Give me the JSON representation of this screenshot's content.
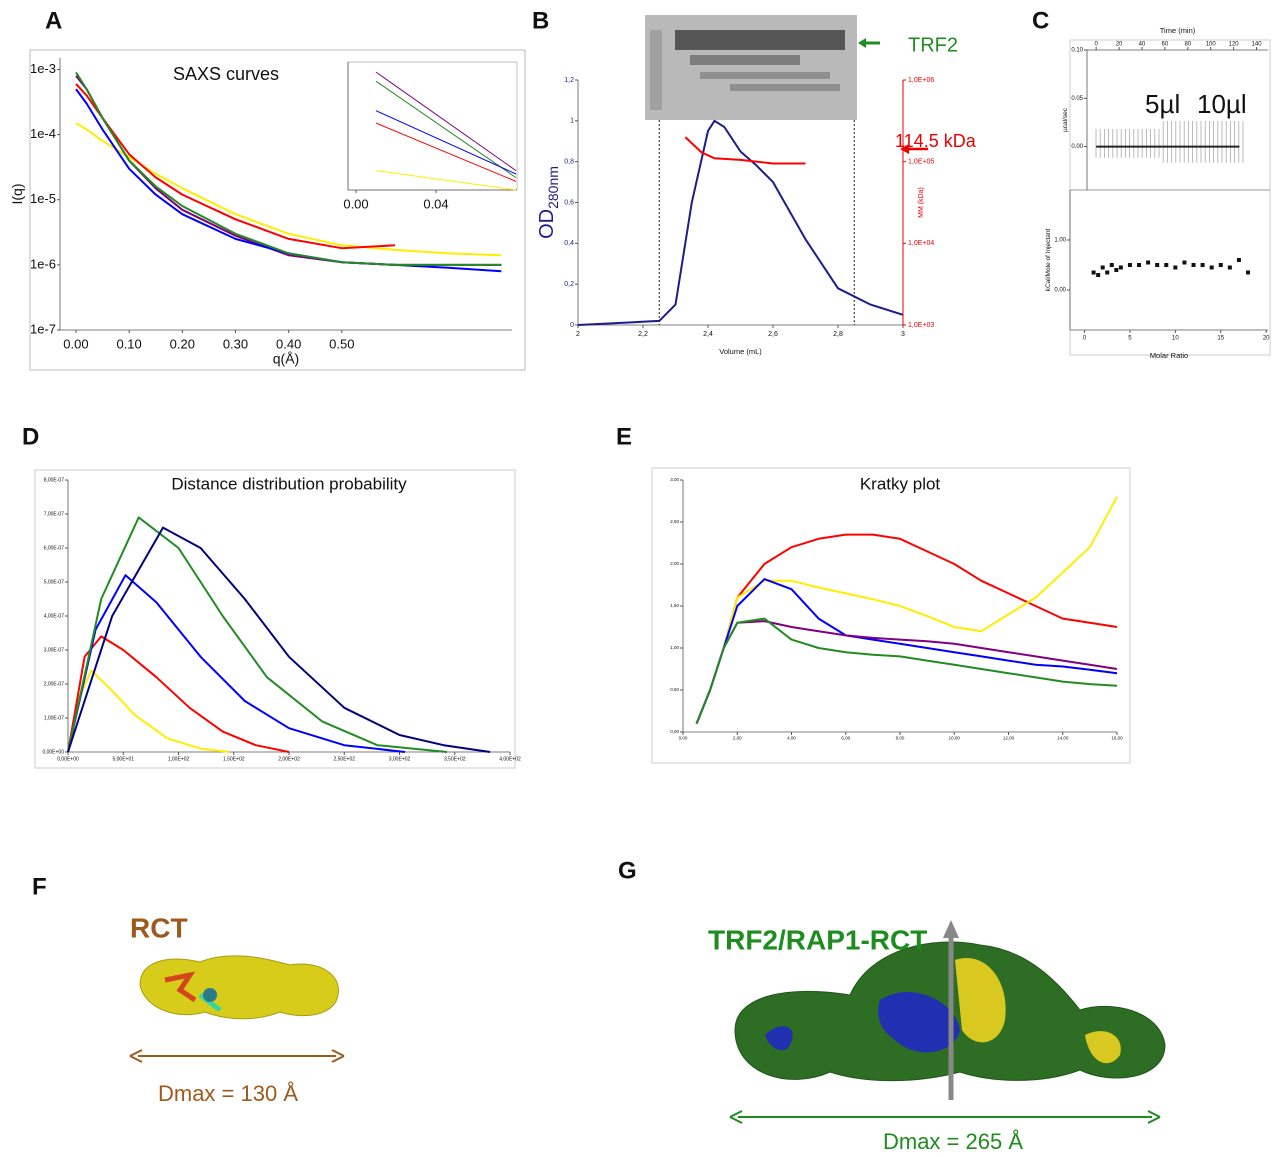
{
  "panel_labels": [
    "A",
    "B",
    "C",
    "D",
    "E",
    "F",
    "G"
  ],
  "chart_data": [
    {
      "type": "line",
      "title": "SAXS curves",
      "xlabel": "q(Å)",
      "ylabel": "I(q)",
      "ylog": true,
      "xlim": [
        -0.03,
        0.82
      ],
      "ylim": [
        1e-07,
        0.0015
      ],
      "xticks": [
        {
          "value": 0,
          "label": "0.00"
        },
        {
          "value": 0.1,
          "label": "0.10"
        },
        {
          "value": 0.2,
          "label": "0.20"
        },
        {
          "value": 0.3,
          "label": "0.30"
        },
        {
          "value": 0.4,
          "label": "0.40"
        },
        {
          "value": 0.5,
          "label": "0.50"
        }
      ],
      "yticks": [
        {
          "value": 0.001,
          "label": "1e-3"
        },
        {
          "value": 0.0001,
          "label": "1e-4"
        },
        {
          "value": 1e-05,
          "label": "1e-5"
        },
        {
          "value": 1e-06,
          "label": "1e-6"
        },
        {
          "value": 1e-07,
          "label": "1e-7"
        }
      ],
      "x": [
        0,
        0.02,
        0.05,
        0.1,
        0.15,
        0.2,
        0.3,
        0.4,
        0.5,
        0.6,
        0.7,
        0.8
      ],
      "series": [
        {
          "color": "#ffee00",
          "values": [
            0.00015,
            0.00012,
            8e-05,
            4.5e-05,
            2.5e-05,
            1.5e-05,
            6e-06,
            3e-06,
            2e-06,
            1.7e-06,
            1.5e-06,
            1.4e-06
          ]
        },
        {
          "color": "#ff0000",
          "values": [
            0.0006,
            0.0004,
            0.00018,
            5e-05,
            2.2e-05,
            1.2e-05,
            5e-06,
            2.5e-06,
            1.8e-06,
            2e-06,
            null,
            null
          ]
        },
        {
          "color": "#800080",
          "values": [
            0.0008,
            0.0005,
            0.00018,
            4e-05,
            1.5e-05,
            7e-06,
            2.8e-06,
            1.4e-06,
            1.1e-06,
            1e-06,
            1e-06,
            1e-06
          ]
        },
        {
          "color": "#0000ff",
          "values": [
            0.0005,
            0.0003,
            0.00012,
            3e-05,
            1.2e-05,
            6e-06,
            2.5e-06,
            1.5e-06,
            1.1e-06,
            1e-06,
            9e-07,
            8e-07
          ]
        },
        {
          "color": "#228b22",
          "values": [
            0.0009,
            0.0005,
            0.00018,
            4e-05,
            1.6e-05,
            8e-06,
            3e-06,
            1.5e-06,
            1.1e-06,
            1e-06,
            1e-06,
            1e-06
          ]
        }
      ]
    },
    {
      "type": "line",
      "ylog": true,
      "xlim": [
        -0.004,
        0.0805
      ],
      "ylim": [
        0.00012,
        0.0012
      ],
      "xticks": [
        {
          "value": 0,
          "label": "0.00"
        },
        0.04
      ],
      "x": [
        0.01,
        0.08
      ],
      "series": [
        {
          "color": "#800080",
          "values": [
            0.001,
            0.00017
          ]
        },
        {
          "color": "#228b22",
          "values": [
            0.00085,
            0.00015
          ]
        },
        {
          "color": "#0000ff",
          "values": [
            0.0005,
            0.00016
          ]
        },
        {
          "color": "#ff0000",
          "values": [
            0.0004,
            0.00014
          ]
        },
        {
          "color": "#ffee00",
          "values": [
            0.00017,
            0.00012
          ]
        }
      ]
    },
    {
      "type": "line",
      "xlabel": "Volume (mL)",
      "ylabel": "OD",
      "ylabel_subscript": "280nm",
      "y2label": "MM (kDa)",
      "y2log": true,
      "xlim": [
        2,
        3
      ],
      "ylim": [
        0,
        1.2
      ],
      "y2lim": [
        1000,
        1000000
      ],
      "xticks": [
        2,
        {
          "value": 2.2,
          "label": "2,2"
        },
        {
          "value": 2.4,
          "label": "2,4"
        },
        {
          "value": 2.6,
          "label": "2,6"
        },
        {
          "value": 2.8,
          "label": "2,8"
        },
        3
      ],
      "yticks": [
        0,
        {
          "value": 0.2,
          "label": "0,2"
        },
        {
          "value": 0.4,
          "label": "0,4"
        },
        {
          "value": 0.6,
          "label": "0,6"
        },
        {
          "value": 0.8,
          "label": "0,8"
        },
        1,
        {
          "value": 1.2,
          "label": "1,2"
        }
      ],
      "y2ticks": [
        {
          "value": 1000,
          "label": "1,0E+03"
        },
        {
          "value": 10000,
          "label": "1,0E+04"
        },
        {
          "value": 100000,
          "label": "1,0E+05"
        },
        {
          "value": 1000000,
          "label": "1,0E+06"
        }
      ],
      "marker_lines": [
        2.25,
        2.85
      ],
      "annotations": [
        "TRF2",
        "114.5 kDa"
      ],
      "series": [
        {
          "color": "#1c1c8c",
          "x": [
            2,
            2.25,
            2.3,
            2.35,
            2.4,
            2.42,
            2.45,
            2.5,
            2.55,
            2.6,
            2.7,
            2.8,
            2.9,
            3
          ],
          "values": [
            0,
            0.02,
            0.1,
            0.6,
            0.95,
            1,
            0.97,
            0.85,
            0.78,
            0.7,
            0.42,
            0.18,
            0.1,
            0.05
          ]
        },
        {
          "color": "#ff0000",
          "axis": "y2",
          "x": [
            2.33,
            2.38,
            2.42,
            2.5,
            2.6,
            2.7
          ],
          "values": [
            200000,
            130000,
            110000,
            105000,
            95000,
            95000
          ]
        }
      ]
    },
    {
      "type": "line",
      "xlabel": "Time (min)",
      "ylabel": "µcal/sec",
      "xaxis": "top",
      "xlim": [
        -8,
        150
      ],
      "ylim": [
        -0.045,
        0.1
      ],
      "xticks": [
        0,
        20,
        40,
        60,
        80,
        100,
        120,
        140
      ],
      "yticks": [
        {
          "value": 0,
          "label": "0.00"
        },
        0.05,
        {
          "value": 0.1,
          "label": "0.10"
        }
      ],
      "annotations": [
        "5µl",
        "10µl"
      ],
      "series": [
        {
          "color": "#222222",
          "x": [
            0,
            125
          ],
          "values": [
            0,
            0
          ]
        }
      ]
    },
    {
      "type": "scatter",
      "xlabel": "Molar Ratio",
      "ylabel": "kCal/Mole of Injectant",
      "xlim": [
        -1.6,
        20.2
      ],
      "ylim": [
        -0.8,
        2
      ],
      "xticks": [
        0,
        5,
        10,
        15,
        20
      ],
      "yticks": [
        {
          "value": 0,
          "label": "0.00"
        },
        {
          "value": 1,
          "label": "1.00"
        }
      ],
      "series": [
        {
          "color": "#111111",
          "x": [
            1,
            1.5,
            2,
            2.5,
            3,
            3.5,
            4,
            5,
            6,
            7,
            8,
            9,
            10,
            11,
            12,
            13,
            14,
            15,
            16,
            17,
            18
          ],
          "values": [
            0.35,
            0.3,
            0.45,
            0.35,
            0.5,
            0.4,
            0.45,
            0.5,
            0.5,
            0.55,
            0.5,
            0.5,
            0.45,
            0.55,
            0.5,
            0.5,
            0.45,
            0.5,
            0.45,
            0.6,
            0.35
          ]
        }
      ]
    },
    {
      "type": "line",
      "title": "Distance distribution probability",
      "xlim": [
        0,
        400
      ],
      "ylim": [
        0,
        8e-07
      ],
      "xticks": [
        {
          "value": 0,
          "label": "0,00E+00"
        },
        {
          "value": 50,
          "label": "5,00E+01"
        },
        {
          "value": 100,
          "label": "1,00E+02"
        },
        {
          "value": 150,
          "label": "1,50E+02"
        },
        {
          "value": 200,
          "label": "2,00E+02"
        },
        {
          "value": 250,
          "label": "2,50E+02"
        },
        {
          "value": 300,
          "label": "3,00E+02"
        },
        {
          "value": 350,
          "label": "3,50E+02"
        },
        {
          "value": 400,
          "label": "4,00E+02"
        }
      ],
      "yticks": [
        {
          "value": 0,
          "label": "0,00E+00"
        },
        {
          "value": 1e-07,
          "label": "1,00E-07"
        },
        {
          "value": 2e-07,
          "label": "2,00E-07"
        },
        {
          "value": 3e-07,
          "label": "3,00E-07"
        },
        {
          "value": 4e-07,
          "label": "4,00E-07"
        },
        {
          "value": 5e-07,
          "label": "5,00E-07"
        },
        {
          "value": 6e-07,
          "label": "6,00E-07"
        },
        {
          "value": 7e-07,
          "label": "7,00E-07"
        },
        {
          "value": 8e-07,
          "label": "8,00E-07"
        }
      ],
      "series": [
        {
          "color": "#ffee00",
          "x": [
            0,
            10,
            21,
            40,
            60,
            90,
            120,
            146
          ],
          "values": [
            0,
            1.6e-07,
            2.4e-07,
            1.8e-07,
            1.1e-07,
            4e-08,
            1e-08,
            0
          ]
        },
        {
          "color": "#ff0000",
          "x": [
            0,
            15,
            30,
            50,
            80,
            110,
            140,
            170,
            200
          ],
          "values": [
            0,
            2.8e-07,
            3.4e-07,
            3e-07,
            2.2e-07,
            1.3e-07,
            6e-08,
            2e-08,
            0
          ]
        },
        {
          "color": "#0000ff",
          "x": [
            0,
            25,
            52,
            80,
            120,
            160,
            200,
            250,
            305
          ],
          "values": [
            0,
            3.6e-07,
            5.2e-07,
            4.4e-07,
            2.8e-07,
            1.5e-07,
            7e-08,
            2e-08,
            0
          ]
        },
        {
          "color": "#228b22",
          "x": [
            0,
            30,
            64,
            100,
            140,
            180,
            230,
            280,
            343
          ],
          "values": [
            0,
            4.5e-07,
            6.9e-07,
            6e-07,
            4e-07,
            2.2e-07,
            9e-08,
            2e-08,
            0
          ]
        },
        {
          "color": "#000080",
          "x": [
            0,
            40,
            86,
            120,
            160,
            200,
            250,
            300,
            340,
            382
          ],
          "values": [
            0,
            4e-07,
            6.6e-07,
            6e-07,
            4.5e-07,
            2.8e-07,
            1.3e-07,
            5e-08,
            2e-08,
            0
          ]
        }
      ]
    },
    {
      "type": "line",
      "title": "Kratky plot",
      "xlim": [
        0,
        16
      ],
      "ylim": [
        0,
        3
      ],
      "xticks": [
        {
          "value": 0,
          "label": "0,00"
        },
        {
          "value": 2,
          "label": "2,00"
        },
        {
          "value": 4,
          "label": "4,00"
        },
        {
          "value": 6,
          "label": "6,00"
        },
        {
          "value": 8,
          "label": "8,00"
        },
        {
          "value": 10,
          "label": "10,00"
        },
        {
          "value": 12,
          "label": "12,00"
        },
        {
          "value": 14,
          "label": "14,00"
        },
        {
          "value": 16,
          "label": "16,00"
        }
      ],
      "yticks": [
        {
          "value": 0,
          "label": "0,00"
        },
        {
          "value": 0.5,
          "label": "0,50"
        },
        {
          "value": 1,
          "label": "1,00"
        },
        {
          "value": 1.5,
          "label": "1,50"
        },
        {
          "value": 2,
          "label": "2,00"
        },
        {
          "value": 2.5,
          "label": "2,50"
        },
        {
          "value": 3,
          "label": "3,00"
        }
      ],
      "x": [
        0.5,
        1,
        1.5,
        2,
        3,
        4,
        5,
        6,
        7,
        8,
        9,
        10,
        11,
        12,
        13,
        14,
        15,
        16
      ],
      "series": [
        {
          "color": "#ff0000",
          "values": [
            0.1,
            0.5,
            1.0,
            1.6,
            2.0,
            2.2,
            2.3,
            2.35,
            2.35,
            2.3,
            2.15,
            2.0,
            1.8,
            1.65,
            1.5,
            1.35,
            1.3,
            1.25
          ]
        },
        {
          "color": "#ffee00",
          "values": [
            0.1,
            0.5,
            1.0,
            1.6,
            1.8,
            1.8,
            1.72,
            1.65,
            1.58,
            1.5,
            1.38,
            1.25,
            1.2,
            1.4,
            1.6,
            1.9,
            2.2,
            2.8
          ]
        },
        {
          "color": "#0000ff",
          "values": [
            0.1,
            0.5,
            1.0,
            1.5,
            1.82,
            1.7,
            1.35,
            1.15,
            1.1,
            1.05,
            1.0,
            0.95,
            0.9,
            0.85,
            0.8,
            0.78,
            0.74,
            0.7
          ]
        },
        {
          "color": "#800080",
          "values": [
            0.1,
            0.5,
            1.0,
            1.3,
            1.32,
            1.25,
            1.2,
            1.15,
            1.12,
            1.1,
            1.08,
            1.05,
            1.0,
            0.95,
            0.9,
            0.85,
            0.8,
            0.75
          ]
        },
        {
          "color": "#228b22",
          "values": [
            0.1,
            0.5,
            1.0,
            1.3,
            1.35,
            1.1,
            1.0,
            0.95,
            0.92,
            0.9,
            0.85,
            0.8,
            0.75,
            0.7,
            0.65,
            0.6,
            0.57,
            0.55
          ]
        }
      ]
    }
  ],
  "model_rct": {
    "label": "RCT",
    "dmax": "Dmax = 130 Å"
  },
  "model_complex": {
    "label": "TRF2/RAP1-RCT",
    "dmax": "Dmax = 265 Å"
  }
}
